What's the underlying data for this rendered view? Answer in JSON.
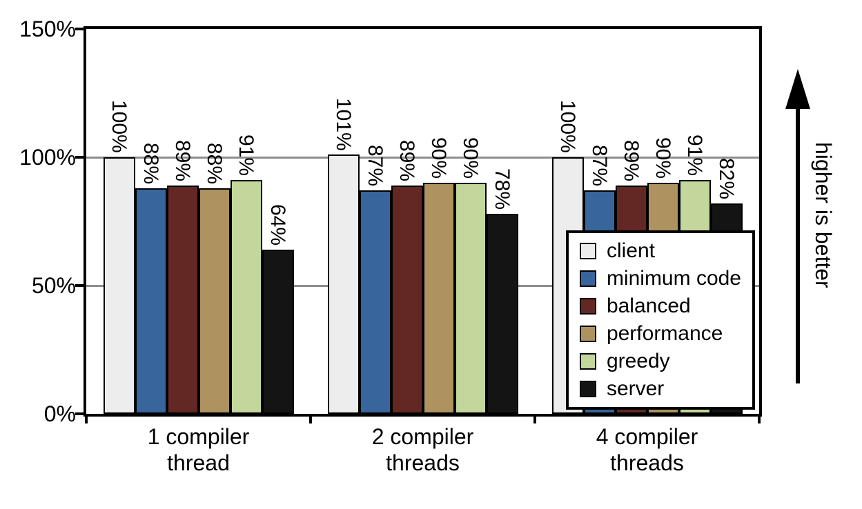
{
  "chart_data": {
    "type": "bar",
    "title": "",
    "xlabel": "",
    "ylabel": "",
    "ylim": [
      0,
      150
    ],
    "y_ticks": [
      0,
      50,
      100,
      150
    ],
    "y_tick_labels": [
      "0%",
      "50%",
      "100%",
      "150%"
    ],
    "gridlines": [
      50,
      100
    ],
    "grid": true,
    "legend_position": "inside-bottom-right",
    "value_label_format": "{v}%",
    "annotation": "higher is better",
    "categories": [
      [
        "1 compiler",
        "thread"
      ],
      [
        "2 compiler",
        "threads"
      ],
      [
        "4 compiler",
        "threads"
      ]
    ],
    "series": [
      {
        "name": "client",
        "color": "#ededed",
        "values": [
          100,
          101,
          100
        ]
      },
      {
        "name": "minimum code",
        "color": "#38659b",
        "values": [
          88,
          87,
          87
        ]
      },
      {
        "name": "balanced",
        "color": "#632823",
        "values": [
          89,
          89,
          89
        ]
      },
      {
        "name": "performance",
        "color": "#ae9361",
        "values": [
          88,
          90,
          90
        ]
      },
      {
        "name": "greedy",
        "color": "#c3d69b",
        "values": [
          91,
          90,
          91
        ]
      },
      {
        "name": "server",
        "color": "#141414",
        "values": [
          64,
          78,
          82
        ]
      }
    ]
  }
}
